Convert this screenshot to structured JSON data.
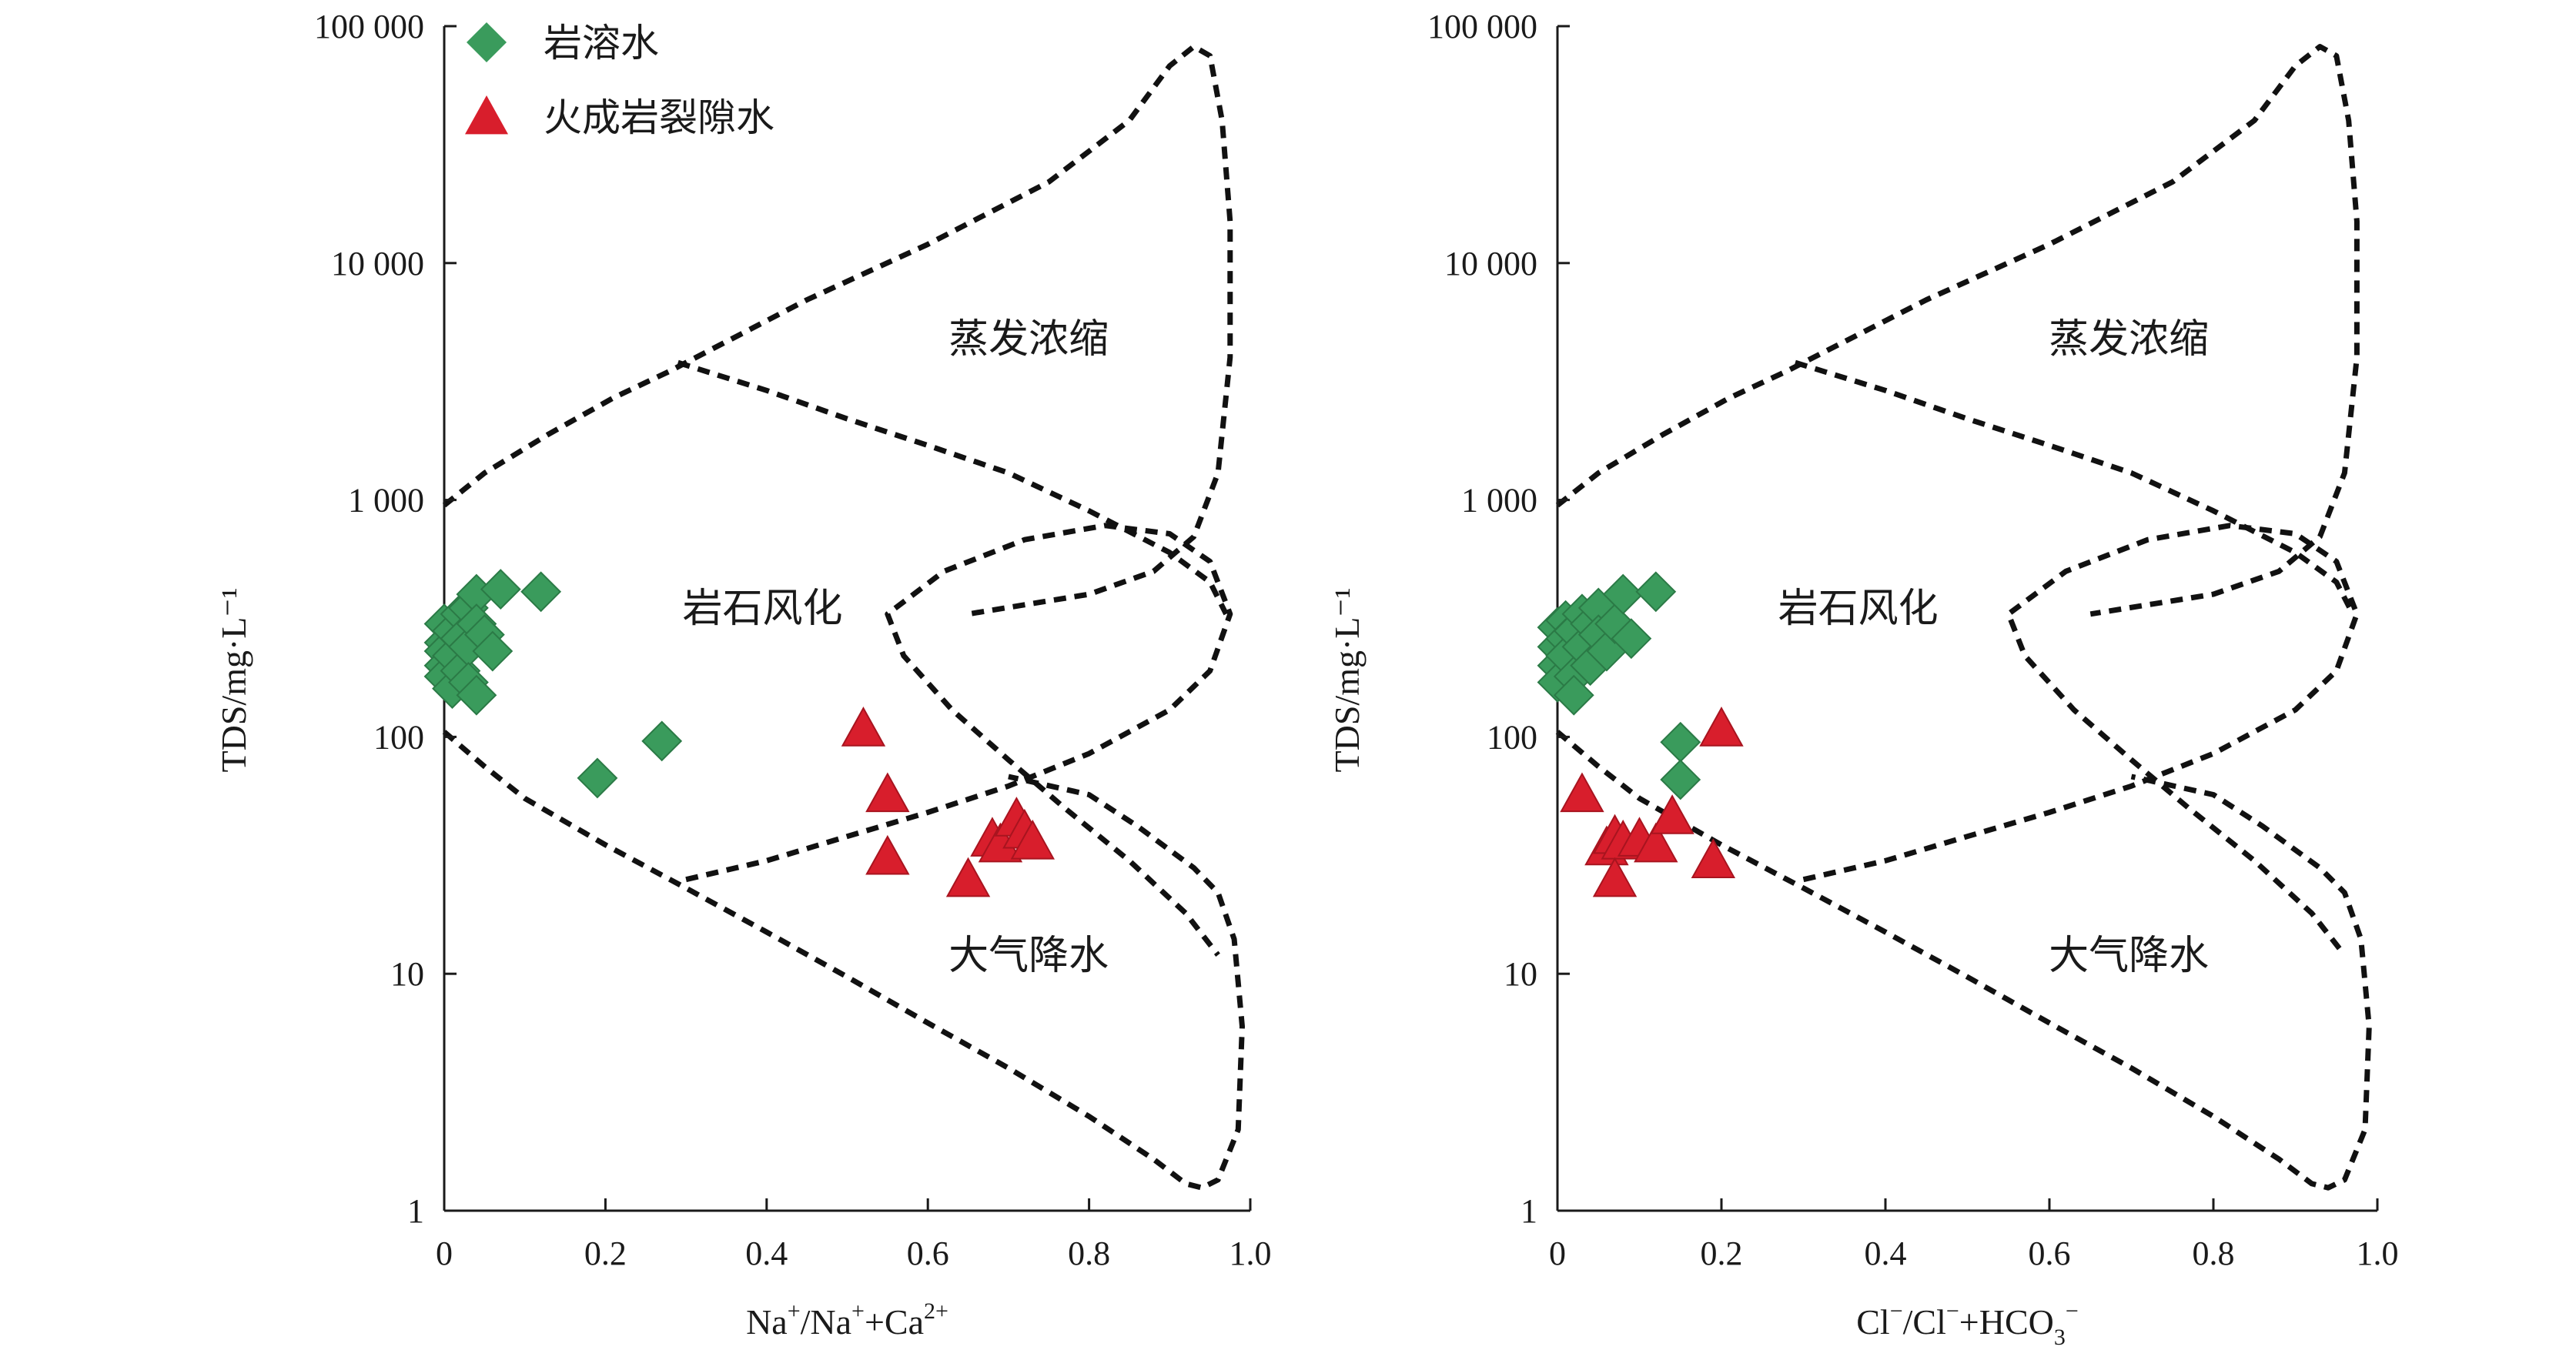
{
  "chart_data": [
    {
      "type": "scatter",
      "xlabel_parts": [
        {
          "t": "Na",
          "sup": ""
        },
        {
          "t": "",
          "sup": "+"
        },
        {
          "t": "/Na",
          "sup": ""
        },
        {
          "t": "",
          "sup": "+"
        },
        {
          "t": "+Ca",
          "sup": ""
        },
        {
          "t": "",
          "sup": "2+"
        }
      ],
      "ylabel": "TDS/mg·L⁻¹",
      "xlim": [
        0,
        1.0
      ],
      "ylim": [
        1,
        100000
      ],
      "yscale": "log",
      "x_ticks": [
        "0",
        "0.2",
        "0.4",
        "0.6",
        "0.8",
        "1.0"
      ],
      "y_ticks": [
        "1",
        "10",
        "100",
        "1 000",
        "10 000",
        "100 000"
      ],
      "zone_labels": {
        "evaporation": "蒸发浓缩",
        "rock": "岩石风化",
        "precipitation": "大气降水"
      },
      "legend": {
        "placement": "top-left",
        "entries": [
          {
            "label": "岩溶水",
            "marker": "diamond",
            "color": "#3a9b5c"
          },
          {
            "label": "火成岩裂隙水",
            "marker": "triangle",
            "color": "#d81e2c"
          }
        ]
      },
      "series": [
        {
          "name": "岩溶水",
          "marker": "diamond",
          "color": "#3a9b5c",
          "points": [
            [
              0.0,
              300
            ],
            [
              0.0,
              250
            ],
            [
              0.0,
              230
            ],
            [
              0.0,
              200
            ],
            [
              0.0,
              180
            ],
            [
              0.01,
              280
            ],
            [
              0.01,
              220
            ],
            [
              0.01,
              160
            ],
            [
              0.02,
              330
            ],
            [
              0.02,
              260
            ],
            [
              0.02,
              190
            ],
            [
              0.03,
              350
            ],
            [
              0.03,
              240
            ],
            [
              0.03,
              170
            ],
            [
              0.04,
              400
            ],
            [
              0.04,
              300
            ],
            [
              0.04,
              150
            ],
            [
              0.05,
              270
            ],
            [
              0.06,
              230
            ],
            [
              0.07,
              420
            ],
            [
              0.12,
              410
            ],
            [
              0.19,
              67
            ],
            [
              0.27,
              96
            ]
          ]
        },
        {
          "name": "火成岩裂隙水",
          "marker": "triangle",
          "color": "#d81e2c",
          "points": [
            [
              0.52,
              108
            ],
            [
              0.55,
              57
            ],
            [
              0.55,
              31
            ],
            [
              0.65,
              25
            ],
            [
              0.68,
              37
            ],
            [
              0.69,
              35
            ],
            [
              0.71,
              45
            ],
            [
              0.72,
              40
            ],
            [
              0.73,
              36
            ]
          ]
        }
      ]
    },
    {
      "type": "scatter",
      "xlabel_parts": [
        {
          "t": "Cl",
          "sup": ""
        },
        {
          "t": "",
          "sup": "−"
        },
        {
          "t": "/Cl",
          "sup": ""
        },
        {
          "t": "",
          "sup": "−"
        },
        {
          "t": "+HCO",
          "sup": ""
        },
        {
          "t": "",
          "sub": "3"
        },
        {
          "t": "",
          "sup": "−"
        }
      ],
      "ylabel": "TDS/mg·L⁻¹",
      "xlim": [
        0,
        1.0
      ],
      "ylim": [
        1,
        100000
      ],
      "yscale": "log",
      "x_ticks": [
        "0",
        "0.2",
        "0.4",
        "0.6",
        "0.8",
        "1.0"
      ],
      "y_ticks": [
        "1",
        "10",
        "100",
        "1 000",
        "10 000",
        "100 000"
      ],
      "zone_labels": {
        "evaporation": "蒸发浓缩",
        "rock": "岩石风化",
        "precipitation": "大气降水"
      },
      "series": [
        {
          "name": "岩溶水",
          "marker": "diamond",
          "color": "#3a9b5c",
          "points": [
            [
              0.0,
              290
            ],
            [
              0.0,
              240
            ],
            [
              0.0,
              200
            ],
            [
              0.0,
              170
            ],
            [
              0.01,
              310
            ],
            [
              0.01,
              260
            ],
            [
              0.01,
              220
            ],
            [
              0.02,
              280
            ],
            [
              0.02,
              180
            ],
            [
              0.02,
              150
            ],
            [
              0.03,
              330
            ],
            [
              0.03,
              240
            ],
            [
              0.04,
              300
            ],
            [
              0.04,
              200
            ],
            [
              0.05,
              350
            ],
            [
              0.05,
              270
            ],
            [
              0.06,
              230
            ],
            [
              0.07,
              300
            ],
            [
              0.08,
              400
            ],
            [
              0.09,
              260
            ],
            [
              0.12,
              410
            ],
            [
              0.15,
              95
            ],
            [
              0.15,
              66
            ]
          ]
        },
        {
          "name": "火成岩裂隙水",
          "marker": "triangle",
          "color": "#d81e2c",
          "points": [
            [
              0.03,
              57
            ],
            [
              0.06,
              34
            ],
            [
              0.07,
              38
            ],
            [
              0.08,
              36
            ],
            [
              0.07,
              25
            ],
            [
              0.1,
              37
            ],
            [
              0.12,
              35
            ],
            [
              0.14,
              46
            ],
            [
              0.19,
              30
            ],
            [
              0.2,
              108
            ]
          ]
        }
      ]
    }
  ]
}
